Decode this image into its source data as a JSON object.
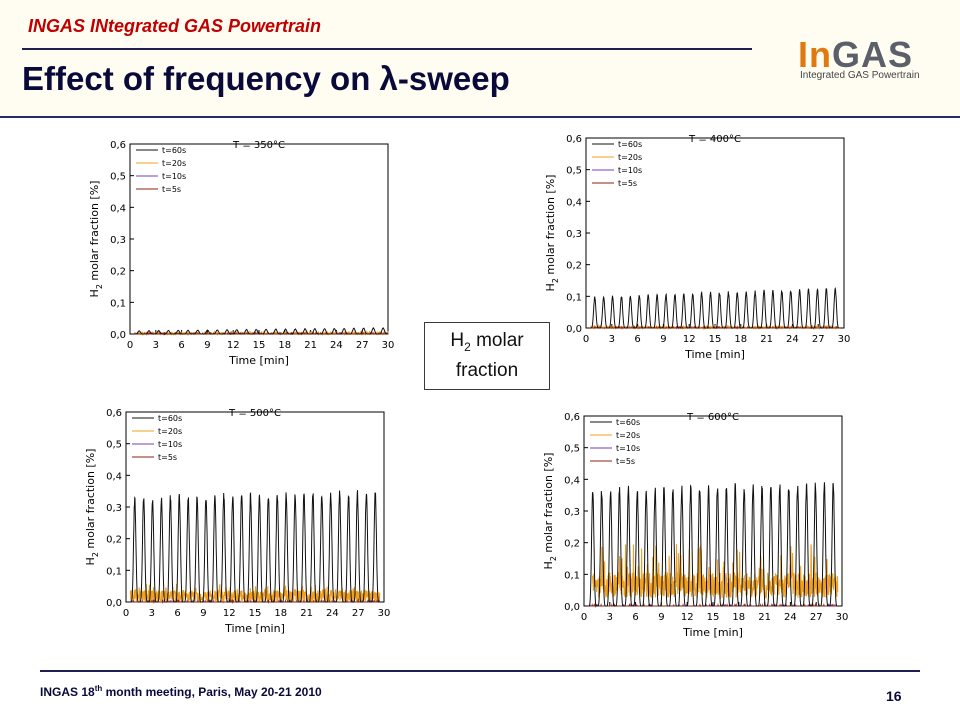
{
  "header": {
    "kicker": "INGAS INtegrated GAS Powertrain",
    "title": "Effect of frequency on λ-sweep"
  },
  "logo": {
    "main_in": "In",
    "main_gas": "GAS",
    "sub": "Integrated GAS Powertrain"
  },
  "note": {
    "h": "H",
    "sub": "2",
    "rest1": " molar",
    "rest2": "fraction"
  },
  "footer": {
    "pre": "INGAS 18",
    "sup": "th",
    "post": " month meeting, Paris, May 20-21 2010",
    "page": "16"
  },
  "colors": {
    "t60": "#111111",
    "t20": "#f0a020",
    "t10": "#7a3fb0",
    "t5": "#8b2010"
  },
  "chart_data": [
    {
      "type": "line",
      "title": "T = 350°C",
      "xlabel": "Time [min]",
      "ylabel_parts": [
        "H",
        "2",
        " molar fraction [%]"
      ],
      "xlim": [
        0,
        30
      ],
      "ylim": [
        0,
        0.6
      ],
      "xticks": [
        "0",
        "3",
        "6",
        "9",
        "12",
        "15",
        "18",
        "21",
        "24",
        "27",
        "30"
      ],
      "yticks": [
        "0,0",
        "0,1",
        "0,2",
        "0,3",
        "0,4",
        "0,5",
        "0,6"
      ],
      "series": [
        {
          "name": "t=60s",
          "peak_start": 0.01,
          "peak_end": 0.02,
          "baseline": 0.0,
          "cycles": 26,
          "start": 0.5,
          "end": 30
        },
        {
          "name": "t=20s",
          "peak_start": 0.005,
          "peak_end": 0.006,
          "baseline": 0.0,
          "noise": 0.003,
          "start": 0.5,
          "end": 30
        },
        {
          "name": "t=10s",
          "peak_start": 0.002,
          "peak_end": 0.002,
          "baseline": 0.0,
          "start": 0.5,
          "end": 30
        },
        {
          "name": "t=5s",
          "peak_start": 0.002,
          "peak_end": 0.002,
          "baseline": 0.0,
          "start": 0.5,
          "end": 30
        }
      ]
    },
    {
      "type": "line",
      "title": "T = 400°C",
      "xlabel": "Time [min]",
      "ylabel_parts": [
        "H",
        "2",
        " molar fraction [%]"
      ],
      "xlim": [
        0,
        30
      ],
      "ylim": [
        0,
        0.6
      ],
      "xticks": [
        "0",
        "3",
        "6",
        "9",
        "12",
        "15",
        "18",
        "21",
        "24",
        "27",
        "30"
      ],
      "yticks": [
        "0,0",
        "0,1",
        "0,2",
        "0,3",
        "0,4",
        "0,5",
        "0,6"
      ],
      "series": [
        {
          "name": "t=60s",
          "peak_start": 0.1,
          "peak_end": 0.13,
          "baseline": 0.0,
          "cycles": 28,
          "start": 0.5,
          "end": 29.5
        },
        {
          "name": "t=20s",
          "peak_start": 0.005,
          "peak_end": 0.005,
          "baseline": 0.0,
          "noise": 0.003,
          "start": 0.5,
          "end": 29.5
        },
        {
          "name": "t=10s",
          "peak_start": 0.002,
          "peak_end": 0.002,
          "baseline": 0.0,
          "start": 0.5,
          "end": 29.5
        },
        {
          "name": "t=5s",
          "peak_start": 0.002,
          "peak_end": 0.002,
          "baseline": 0.0,
          "start": 0.5,
          "end": 29.5
        }
      ]
    },
    {
      "type": "line",
      "title": "T = 500°C",
      "xlabel": "Time [min]",
      "ylabel_parts": [
        "H",
        "2",
        " molar fraction [%]"
      ],
      "xlim": [
        0,
        30
      ],
      "ylim": [
        0,
        0.6
      ],
      "xticks": [
        "0",
        "3",
        "6",
        "9",
        "12",
        "15",
        "18",
        "21",
        "24",
        "27",
        "30"
      ],
      "yticks": [
        "0,0",
        "0,1",
        "0,2",
        "0,3",
        "0,4",
        "0,5",
        "0,6"
      ],
      "series": [
        {
          "name": "t=60s",
          "peak_start": 0.34,
          "peak_end": 0.36,
          "baseline": 0.0,
          "cycles": 28,
          "start": 0.5,
          "end": 29.5
        },
        {
          "name": "t=20s",
          "peak_start": 0.02,
          "peak_end": 0.03,
          "baseline": 0.01,
          "noise": 0.02,
          "start": 0.5,
          "end": 29.5
        },
        {
          "name": "t=10s",
          "peak_start": 0.005,
          "peak_end": 0.005,
          "baseline": 0.0,
          "start": 0.5,
          "end": 29.5
        },
        {
          "name": "t=5s",
          "peak_start": 0.003,
          "peak_end": 0.003,
          "baseline": 0.0,
          "start": 0.5,
          "end": 29.5
        }
      ]
    },
    {
      "type": "line",
      "title": "T = 600°C",
      "xlabel": "Time [min]",
      "ylabel_parts": [
        "H",
        "2",
        " molar fraction [%]"
      ],
      "xlim": [
        0,
        30
      ],
      "ylim": [
        0,
        0.6
      ],
      "xticks": [
        "0",
        "3",
        "6",
        "9",
        "12",
        "15",
        "18",
        "21",
        "24",
        "27",
        "30"
      ],
      "yticks": [
        "0,0",
        "0,1",
        "0,2",
        "0,3",
        "0,4",
        "0,5",
        "0,6"
      ],
      "series": [
        {
          "name": "t=60s",
          "peak_start": 0.38,
          "peak_end": 0.4,
          "baseline": 0.0,
          "cycles": 28,
          "start": 0.5,
          "end": 29.5
        },
        {
          "name": "t=20s",
          "peak_start": 0.09,
          "peak_end": 0.09,
          "baseline": 0.05,
          "noise": 0.04,
          "start": 1,
          "end": 29.5
        },
        {
          "name": "t=10s",
          "peak_start": 0.005,
          "peak_end": 0.005,
          "baseline": 0.0,
          "start": 0.5,
          "end": 29.5
        },
        {
          "name": "t=5s",
          "peak_start": 0.003,
          "peak_end": 0.003,
          "baseline": 0.0,
          "start": 0.5,
          "end": 29.5
        }
      ]
    }
  ]
}
